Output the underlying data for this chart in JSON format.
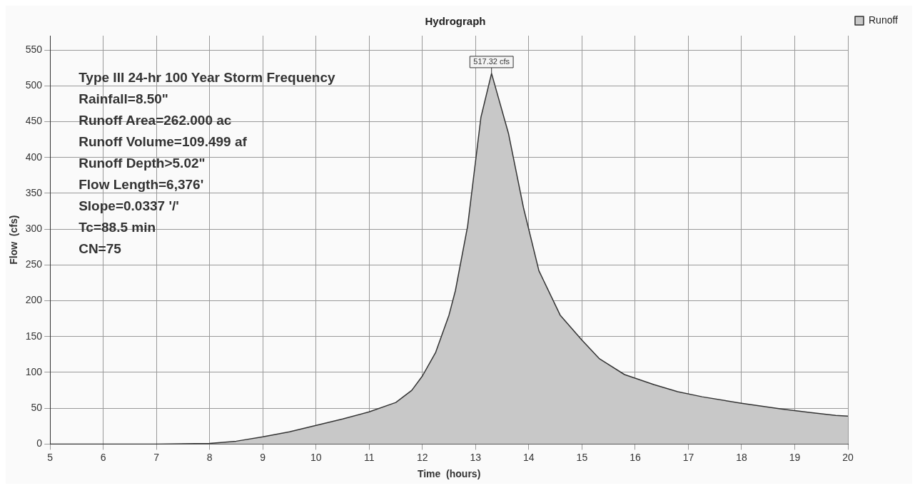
{
  "chart_data": {
    "type": "area",
    "title": "Hydrograph",
    "xlabel": "Time  (hours)",
    "ylabel": "Flow  (cfs)",
    "x": [
      5,
      6,
      7,
      8,
      8.5,
      9,
      9.5,
      10,
      10.5,
      11,
      11.5,
      11.8,
      12,
      12.25,
      12.5,
      12.62,
      12.85,
      13.1,
      13.3,
      13.62,
      13.9,
      14.19,
      14.59,
      15,
      15.33,
      15.8,
      16.35,
      16.8,
      17.26,
      18,
      18.75,
      19.3,
      19.77,
      20
    ],
    "series": [
      {
        "name": "Runoff",
        "color": "#c8c8c8",
        "values": [
          0,
          0,
          0,
          1,
          4,
          10,
          17,
          26,
          35,
          45,
          58,
          75,
          95,
          128,
          180,
          214,
          304,
          456,
          517.32,
          433,
          330,
          242,
          180,
          145,
          119,
          97,
          83,
          73,
          66,
          57,
          49,
          44,
          40,
          39
        ]
      }
    ],
    "xlim": [
      5,
      20
    ],
    "xticks": [
      5,
      6,
      7,
      8,
      9,
      10,
      11,
      12,
      13,
      14,
      15,
      16,
      17,
      18,
      19,
      20
    ],
    "ylim": [
      0,
      570
    ],
    "yticks": [
      0,
      50,
      100,
      150,
      200,
      250,
      300,
      350,
      400,
      450,
      500,
      550
    ],
    "grid": true,
    "legend": "top right",
    "line_style": "solid",
    "marker": "none",
    "annotations": [
      {
        "text": "517.32 cfs",
        "x": 13.3,
        "y": 517.32
      },
      "Type III 24-hr 100 Year Storm Frequency",
      "Rainfall=8.50\"",
      "Runoff Area=262.000 ac",
      "Runoff Volume=109.499 af",
      "Runoff Depth>5.02\"",
      "Flow Length=6,376'",
      "Slope=0.0337 '/'",
      "Tc=88.5 min",
      "CN=75"
    ]
  }
}
